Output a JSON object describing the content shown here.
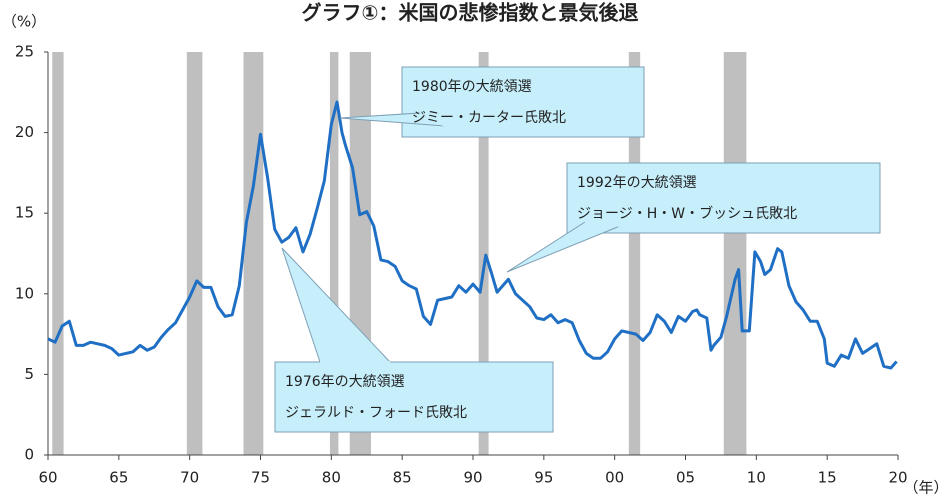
{
  "chart_data": {
    "type": "line",
    "title": "グラフ①：米国の悲惨指数と景気後退",
    "y_label": "（%）",
    "x_label": "（年）",
    "color": "#1f6fc5",
    "shade_color": "#bfbfbf",
    "ylim": [
      0,
      25
    ],
    "yticks": [
      0,
      5,
      10,
      15,
      20,
      25
    ],
    "xlim": [
      1960,
      2020
    ],
    "xticks": [
      {
        "value": 1960,
        "label": "60"
      },
      {
        "value": 1965,
        "label": "65"
      },
      {
        "value": 1970,
        "label": "70"
      },
      {
        "value": 1975,
        "label": "75"
      },
      {
        "value": 1980,
        "label": "80"
      },
      {
        "value": 1985,
        "label": "85"
      },
      {
        "value": 1990,
        "label": "90"
      },
      {
        "value": 1995,
        "label": "95"
      },
      {
        "value": 2000,
        "label": "00"
      },
      {
        "value": 2005,
        "label": "05"
      },
      {
        "value": 2010,
        "label": "10"
      },
      {
        "value": 2015,
        "label": "15"
      },
      {
        "value": 2020,
        "label": "20"
      }
    ],
    "shaded_ranges": [
      [
        1960.3,
        1961.1
      ],
      [
        1969.8,
        1970.9
      ],
      [
        1973.8,
        1975.2
      ],
      [
        1979.9,
        1980.5
      ],
      [
        1981.3,
        1982.8
      ],
      [
        1990.4,
        1991.1
      ],
      [
        2001.0,
        2001.8
      ],
      [
        2007.7,
        2009.3
      ]
    ],
    "x": [
      1960.0,
      1960.5,
      1961.0,
      1961.5,
      1962.0,
      1962.5,
      1963.0,
      1963.5,
      1964.0,
      1964.5,
      1965.0,
      1965.5,
      1966.0,
      1966.5,
      1967.0,
      1967.5,
      1968.0,
      1968.5,
      1969.0,
      1969.5,
      1970.0,
      1970.5,
      1971.0,
      1971.5,
      1972.0,
      1972.5,
      1973.0,
      1973.5,
      1974.0,
      1974.5,
      1975.0,
      1975.5,
      1976.0,
      1976.5,
      1977.0,
      1977.5,
      1978.0,
      1978.5,
      1979.0,
      1979.5,
      1980.0,
      1980.4,
      1980.75,
      1981.0,
      1981.5,
      1982.0,
      1982.5,
      1983.0,
      1983.5,
      1984.0,
      1984.5,
      1985.0,
      1985.5,
      1986.0,
      1986.5,
      1987.0,
      1987.5,
      1988.0,
      1988.5,
      1989.0,
      1989.5,
      1990.0,
      1990.5,
      1990.9,
      1991.3,
      1991.7,
      1992.0,
      1992.5,
      1993.0,
      1993.5,
      1994.0,
      1994.5,
      1995.0,
      1995.5,
      1996.0,
      1996.5,
      1997.0,
      1997.5,
      1998.0,
      1998.5,
      1999.0,
      1999.5,
      2000.0,
      2000.5,
      2001.0,
      2001.5,
      2002.0,
      2002.5,
      2003.0,
      2003.5,
      2004.0,
      2004.5,
      2005.0,
      2005.5,
      2005.8,
      2006.0,
      2006.5,
      2006.8,
      2007.0,
      2007.5,
      2007.9,
      2008.5,
      2008.75,
      2009.0,
      2009.5,
      2009.9,
      2010.3,
      2010.6,
      2011.0,
      2011.5,
      2011.8,
      2012.3,
      2012.8,
      2013.3,
      2013.8,
      2014.3,
      2014.8,
      2015.0,
      2015.5,
      2016.0,
      2016.5,
      2017.0,
      2017.5,
      2018.0,
      2018.5,
      2019.0,
      2019.5,
      2019.9
    ],
    "values": [
      7.2,
      7.0,
      8.0,
      8.3,
      6.8,
      6.8,
      7.0,
      6.9,
      6.8,
      6.6,
      6.2,
      6.3,
      6.4,
      6.8,
      6.5,
      6.7,
      7.3,
      7.8,
      8.2,
      9.0,
      9.8,
      10.8,
      10.4,
      10.4,
      9.2,
      8.6,
      8.7,
      10.5,
      14.4,
      16.7,
      19.9,
      17.2,
      14.0,
      13.2,
      13.5,
      14.1,
      12.6,
      13.7,
      15.3,
      17.0,
      20.5,
      21.9,
      20.0,
      19.2,
      17.8,
      14.9,
      15.1,
      14.2,
      12.1,
      12.0,
      11.7,
      10.8,
      10.5,
      10.3,
      8.6,
      8.1,
      9.6,
      9.7,
      9.8,
      10.5,
      10.1,
      10.6,
      10.1,
      12.4,
      11.3,
      10.1,
      10.4,
      10.9,
      10.0,
      9.6,
      9.2,
      8.5,
      8.4,
      8.7,
      8.2,
      8.4,
      8.2,
      7.1,
      6.3,
      6.0,
      6.0,
      6.4,
      7.2,
      7.7,
      7.6,
      7.5,
      7.1,
      7.6,
      8.7,
      8.3,
      7.6,
      8.6,
      8.3,
      8.9,
      9.0,
      8.7,
      8.5,
      6.5,
      6.8,
      7.3,
      8.6,
      10.9,
      11.5,
      7.7,
      7.7,
      12.6,
      12.0,
      11.2,
      11.5,
      12.8,
      12.6,
      10.5,
      9.5,
      9.0,
      8.3,
      8.3,
      7.2,
      5.7,
      5.5,
      6.2,
      6.0,
      7.2,
      6.3,
      6.6,
      6.9,
      5.5,
      5.4,
      5.8
    ],
    "annotations": [
      {
        "lines": [
          "1980年の大統領選",
          "ジミー・カーター氏敗北"
        ]
      },
      {
        "lines": [
          "1992年の大統領選",
          "ジョージ・H・W・ブッシュ氏敗北"
        ]
      },
      {
        "lines": [
          "1976年の大統領選",
          "ジェラルド・フォード氏敗北"
        ]
      }
    ]
  }
}
